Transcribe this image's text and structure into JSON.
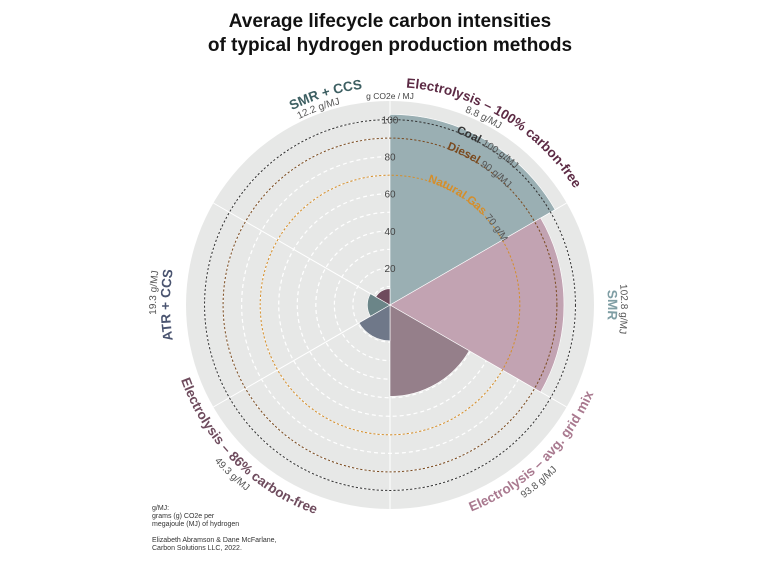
{
  "title": {
    "line1": "Average lifecycle carbon intensities",
    "line2": "of typical hydrogen production methods"
  },
  "chart_data": {
    "type": "polar-area",
    "unit_label": "g CO2e / MJ",
    "rmax": 110,
    "grid": true,
    "ticks": [
      "20",
      "40",
      "60",
      "80",
      "100"
    ],
    "categories": [
      "SMR",
      "Electrolysis – avg. grid mix",
      "Electrolysis – 86% carbon-free",
      "ATR + CCS",
      "SMR + CCS",
      "Electrolysis – 100% carbon-free"
    ],
    "values": [
      102.8,
      93.8,
      49.3,
      19.3,
      12.2,
      8.8
    ],
    "value_labels": [
      "102.8 g/MJ",
      "93.8 g/MJ",
      "49.3 g/MJ",
      "19.3 g/MJ",
      "12.2 g/MJ",
      "8.8 g/MJ"
    ],
    "colors": [
      "#9aafb3",
      "#c2a3b2",
      "#957f8a",
      "#6f7889",
      "#6b8588",
      "#6e4b5d"
    ],
    "reference_lines": [
      {
        "name": "Coal",
        "value": 100,
        "label": "100 g/MJ",
        "color": "#333333"
      },
      {
        "name": "Diesel",
        "value": 90,
        "label": "90 g/MJ",
        "color": "#7a4a1f"
      },
      {
        "name": "Natural Gas",
        "value": 70,
        "label": "70 g/MJ",
        "color": "#d58e2a"
      }
    ]
  },
  "note": {
    "line1": "g/MJ:",
    "line2": "grams (g) CO2e per",
    "line3": "megajoule (MJ) of hydrogen"
  },
  "credit": {
    "line1": "Elizabeth Abramson & Dane McFarlane,",
    "line2": "Carbon Solutions LLC, 2022."
  }
}
